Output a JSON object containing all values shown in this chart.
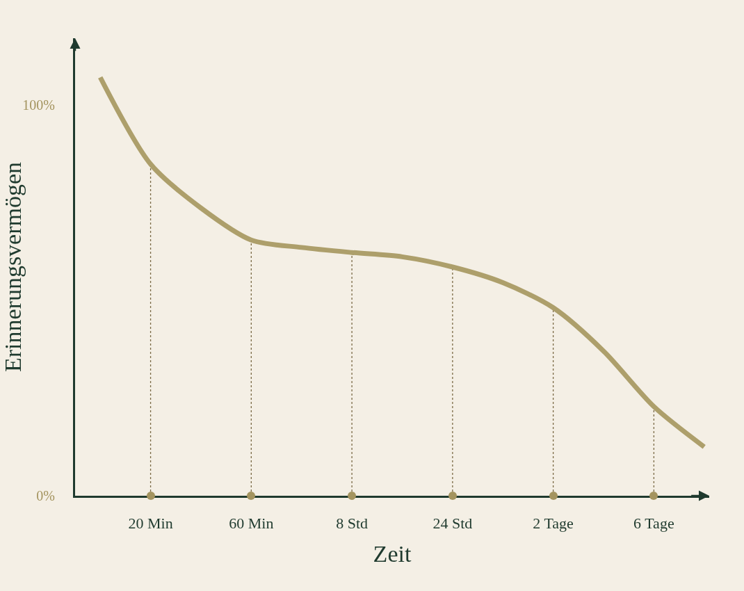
{
  "chart_data": {
    "type": "line",
    "xlabel": "Zeit",
    "ylabel": "Erinnerungsvermögen",
    "categories": [
      null,
      "20 Min",
      null,
      "60 Min",
      null,
      "8 Std",
      null,
      "24 Std",
      null,
      "2 Tage",
      null,
      "6 Tage",
      null
    ],
    "series": [
      {
        "color": "#ad9f6b",
        "values": [
          107,
          84.8,
          73.6,
          65.4,
          63.5,
          62.2,
          61.1,
          58.5,
          54.5,
          48.1,
          37,
          22.8,
          12.5
        ]
      }
    ],
    "ylim": [
      0,
      117
    ],
    "yticks": [
      {
        "value": 0,
        "label": "0%"
      },
      {
        "value": 100,
        "label": "100%"
      }
    ],
    "grid": false,
    "marker": "none",
    "line_style": "solid"
  }
}
